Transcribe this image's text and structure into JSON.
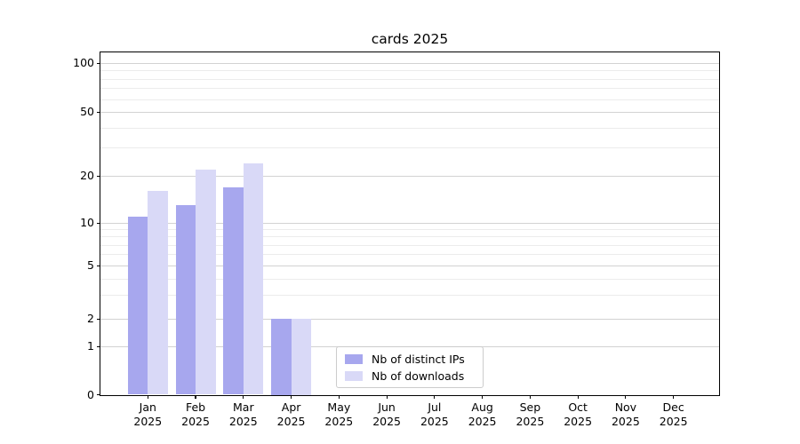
{
  "chart_data": {
    "type": "bar",
    "title": "cards 2025",
    "categories": [
      "Jan",
      "Feb",
      "Mar",
      "Apr",
      "May",
      "Jun",
      "Jul",
      "Aug",
      "Sep",
      "Oct",
      "Nov",
      "Dec"
    ],
    "category_year": "2025",
    "series": [
      {
        "name": "Nb of distinct IPs",
        "color": "#a7a7ee",
        "values": [
          11,
          13,
          17,
          2,
          0,
          0,
          0,
          0,
          0,
          0,
          0,
          0
        ]
      },
      {
        "name": "Nb of downloads",
        "color": "#d9d9f7",
        "values": [
          16,
          22,
          24,
          2,
          0,
          0,
          0,
          0,
          0,
          0,
          0,
          0
        ]
      }
    ],
    "yaxis": {
      "scale": "log-like (linear segment between 0 and 1)",
      "major_ticks": [
        100,
        50,
        20,
        10,
        5,
        2,
        1,
        0
      ],
      "minor_ticks": [
        90,
        80,
        70,
        60,
        40,
        30,
        9,
        8,
        7,
        6,
        4,
        3
      ],
      "ylim": [
        0,
        115
      ]
    },
    "xlabel": "",
    "ylabel": "",
    "grid": true,
    "legend_position": "lower center"
  },
  "colors": {
    "bar_dark": "#a7a7ee",
    "bar_light": "#d9d9f7",
    "grid_major": "#d2d2d2",
    "grid_minor": "#ececec",
    "spine": "#000000",
    "legend_border": "#cccccc"
  }
}
